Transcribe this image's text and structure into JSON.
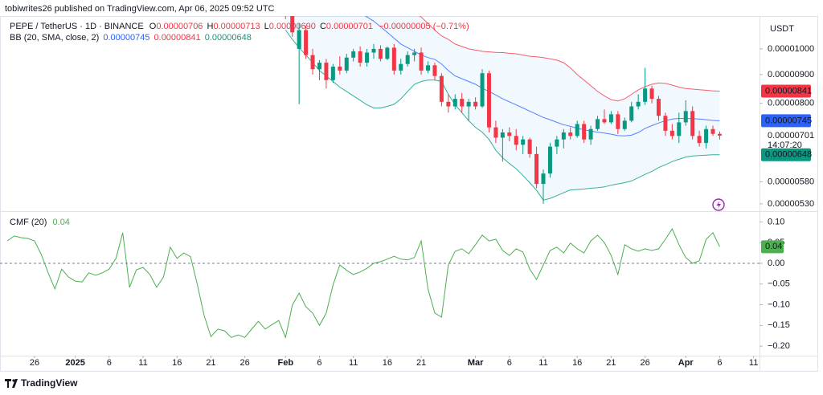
{
  "header": {
    "publisher": "tobiwrites26 published on TradingView.com, Apr 06, 2025 09:52 UTC",
    "currency": "USDT",
    "brand": "TradingView"
  },
  "chart_data": [
    {
      "type": "candlestick",
      "symbol": "PEPE / TetherUS · 1D · BINANCE",
      "ohlc_letters": [
        "O",
        "H",
        "L",
        "C"
      ],
      "ohlc_labels": [
        "0.00000706",
        "0.00000713",
        "0.00000690",
        "0.00000701"
      ],
      "change": "−0.00000005 (−0.71%)",
      "last_label": "0.00000701",
      "countdown": "14:07:20",
      "up_color": "#089981",
      "down_color": "#f23645",
      "log_scale": true,
      "ylim": [
        5.16e-06,
        1.144e-05
      ],
      "yticks": [
        {
          "value": 1e-05,
          "label": "0.00001000"
        },
        {
          "value": 9e-06,
          "label": "0.00000900"
        },
        {
          "value": 8e-06,
          "label": "0.00000800"
        },
        {
          "value": 5.8e-06,
          "label": "0.00000580"
        },
        {
          "value": 5.3e-06,
          "label": "0.00000530"
        }
      ],
      "x": [
        "2025-02-01",
        "2025-02-02",
        "2025-02-03",
        "2025-02-04",
        "2025-02-05",
        "2025-02-06",
        "2025-02-07",
        "2025-02-08",
        "2025-02-09",
        "2025-02-10",
        "2025-02-11",
        "2025-02-12",
        "2025-02-13",
        "2025-02-14",
        "2025-02-15",
        "2025-02-16",
        "2025-02-17",
        "2025-02-18",
        "2025-02-19",
        "2025-02-20",
        "2025-02-21",
        "2025-02-22",
        "2025-02-23",
        "2025-02-24",
        "2025-02-25",
        "2025-02-26",
        "2025-02-27",
        "2025-02-28",
        "2025-03-01",
        "2025-03-02",
        "2025-03-03",
        "2025-03-04",
        "2025-03-05",
        "2025-03-06",
        "2025-03-07",
        "2025-03-08",
        "2025-03-09",
        "2025-03-10",
        "2025-03-11",
        "2025-03-12",
        "2025-03-13",
        "2025-03-14",
        "2025-03-15",
        "2025-03-16",
        "2025-03-17",
        "2025-03-18",
        "2025-03-19",
        "2025-03-20",
        "2025-03-21",
        "2025-03-22",
        "2025-03-23",
        "2025-03-24",
        "2025-03-25",
        "2025-03-26",
        "2025-03-27",
        "2025-03-28",
        "2025-03-29",
        "2025-03-30",
        "2025-03-31",
        "2025-04-01",
        "2025-04-02",
        "2025-04-03",
        "2025-04-04",
        "2025-04-05",
        "2025-04-06"
      ],
      "open": [
        1.19e-05,
        1.15e-05,
        1e-05,
        1.08e-05,
        9.75e-06,
        9.2e-06,
        9.45e-06,
        8.8e-06,
        9.3e-06,
        9.15e-06,
        9.65e-06,
        9.9e-06,
        9.45e-06,
        9.85e-06,
        1e-05,
        9.6e-06,
        1.005e-05,
        9.15e-06,
        9.4e-06,
        9.75e-06,
        9.85e-06,
        9.15e-06,
        9.35e-06,
        8.95e-06,
        8.05e-06,
        7.9e-06,
        8.15e-06,
        7.9e-06,
        8.05e-06,
        7.9e-06,
        9.05e-06,
        7.25e-06,
        6.95e-06,
        7.1e-06,
        7e-06,
        6.75e-06,
        6.9e-06,
        6.5e-06,
        5.75e-06,
        6e-06,
        6.7e-06,
        6.9e-06,
        7.1e-06,
        7e-06,
        7.35e-06,
        6.9e-06,
        7.2e-06,
        7.5e-06,
        7.4e-06,
        7.65e-06,
        7.2e-06,
        7.45e-06,
        7.9e-06,
        8.05e-06,
        8.5e-06,
        8.15e-06,
        7.6e-06,
        7.15e-06,
        7e-06,
        7.4e-06,
        7.75e-06,
        7e-06,
        6.8e-06,
        7.2e-06,
        7.06e-06
      ],
      "high": [
        1.23e-05,
        1.17e-05,
        1.11e-05,
        1.1e-05,
        1e-05,
        9.55e-06,
        9.6e-06,
        9.4e-06,
        9.7e-06,
        9.8e-06,
        1e-05,
        1.01e-05,
        1e-05,
        1.02e-05,
        1.015e-05,
        1.01e-05,
        1.02e-05,
        9.6e-06,
        9.9e-06,
        1e-05,
        1.005e-05,
        9.5e-06,
        9.45e-06,
        9.05e-06,
        8.3e-06,
        8.3e-06,
        8.35e-06,
        8.15e-06,
        8.2e-06,
        9.2e-06,
        9.15e-06,
        7.45e-06,
        7.2e-06,
        7.25e-06,
        7.2e-06,
        7e-06,
        6.95e-06,
        6.7e-06,
        6.1e-06,
        6.8e-06,
        7e-06,
        7.2e-06,
        7.25e-06,
        7.45e-06,
        7.45e-06,
        7.3e-06,
        7.6e-06,
        7.8e-06,
        7.75e-06,
        7.75e-06,
        7.55e-06,
        8.05e-06,
        8.3e-06,
        9.25e-06,
        8.6e-06,
        8.25e-06,
        7.7e-06,
        7.35e-06,
        7.7e-06,
        8.1e-06,
        7.9e-06,
        7.15e-06,
        7.3e-06,
        7.3e-06,
        7.13e-06
      ],
      "low": [
        1.13e-05,
        1.05e-05,
        7.97e-06,
        9.6e-06,
        9e-06,
        8.8e-06,
        8.5e-06,
        8.7e-06,
        9e-06,
        9.05e-06,
        9.5e-06,
        9.3e-06,
        9.3e-06,
        9.6e-06,
        9.5e-06,
        9.55e-06,
        9e-06,
        9e-06,
        9.3e-06,
        9.5e-06,
        9e-06,
        9.05e-06,
        8.8e-06,
        7.9e-06,
        7.7e-06,
        7.8e-06,
        7.7e-06,
        7.45e-06,
        7.8e-06,
        7.85e-06,
        7.1e-06,
        6.8e-06,
        6.3e-06,
        6.85e-06,
        6.6e-06,
        6.5e-06,
        6.4e-06,
        5.65e-06,
        5.3e-06,
        5.9e-06,
        6.5e-06,
        6.65e-06,
        6.9e-06,
        6.95e-06,
        6.8e-06,
        6.75e-06,
        7.15e-06,
        7.35e-06,
        7.35e-06,
        7.05e-06,
        7.15e-06,
        7.4e-06,
        7.8e-06,
        7.95e-06,
        8e-06,
        7.45e-06,
        7e-06,
        6.9e-06,
        6.8e-06,
        7.3e-06,
        6.9e-06,
        6.7e-06,
        6.65e-06,
        7e-06,
        6.9e-06
      ],
      "close": [
        1.15e-05,
        1.07e-05,
        1.08e-05,
        9.75e-06,
        9.2e-06,
        9.45e-06,
        8.8e-06,
        9.3e-06,
        9.15e-06,
        9.65e-06,
        9.9e-06,
        9.45e-06,
        9.85e-06,
        1e-05,
        9.6e-06,
        1.005e-05,
        9.15e-06,
        9.4e-06,
        9.75e-06,
        9.85e-06,
        9.15e-06,
        9.35e-06,
        8.95e-06,
        8.05e-06,
        7.9e-06,
        8.15e-06,
        7.9e-06,
        8.05e-06,
        7.9e-06,
        9.05e-06,
        7.25e-06,
        6.95e-06,
        7.1e-06,
        7e-06,
        6.75e-06,
        6.9e-06,
        6.5e-06,
        5.75e-06,
        6e-06,
        6.7e-06,
        6.9e-06,
        7.1e-06,
        7e-06,
        7.35e-06,
        6.9e-06,
        7.2e-06,
        7.5e-06,
        7.4e-06,
        7.65e-06,
        7.2e-06,
        7.45e-06,
        7.9e-06,
        8.05e-06,
        8.5e-06,
        8.15e-06,
        7.6e-06,
        7.15e-06,
        7e-06,
        7.4e-06,
        7.75e-06,
        7e-06,
        6.8e-06,
        7.2e-06,
        7.06e-06,
        7.01e-06
      ],
      "overlay": {
        "name": "BB (20, SMA, close, 2)",
        "fill": "#2196f3",
        "series": [
          {
            "color": "#2962ff",
            "value_label": "0.00000745",
            "values": [
              1.33e-05,
              1.32e-05,
              1.305e-05,
              1.29e-05,
              1.28e-05,
              1.265e-05,
              1.25e-05,
              1.235e-05,
              1.22e-05,
              1.2e-05,
              1.18e-05,
              1.16e-05,
              1.14e-05,
              1.12e-05,
              1.095e-05,
              1.07e-05,
              1.045e-05,
              1.02e-05,
              1.005e-05,
              9.9e-06,
              9.75e-06,
              9.65e-06,
              9.58e-06,
              9.4e-06,
              9.15e-06,
              8.95e-06,
              8.85e-06,
              8.75e-06,
              8.65e-06,
              8.51e-06,
              8.4e-06,
              8.28e-06,
              8.15e-06,
              8.05e-06,
              7.95e-06,
              7.85e-06,
              7.75e-06,
              7.65e-06,
              7.55e-06,
              7.48e-06,
              7.4e-06,
              7.33e-06,
              7.28e-06,
              7.22e-06,
              7.18e-06,
              7.14e-06,
              7.11e-06,
              7.08e-06,
              7.05e-06,
              7.01e-06,
              7e-06,
              7.02e-06,
              7.1e-06,
              7.22e-06,
              7.3e-06,
              7.38e-06,
              7.45e-06,
              7.5e-06,
              7.52e-06,
              7.52e-06,
              7.51e-06,
              7.5e-06,
              7.48e-06,
              7.46e-06,
              7.45e-06
            ]
          },
          {
            "color": "#f23645",
            "value_label": "0.00000841",
            "values": [
              1.42e-05,
              1.41e-05,
              1.4e-05,
              1.39e-05,
              1.38e-05,
              1.37e-05,
              1.35e-05,
              1.33e-05,
              1.31e-05,
              1.3e-05,
              1.29e-05,
              1.28e-05,
              1.27e-05,
              1.26e-05,
              1.25e-05,
              1.24e-05,
              1.23e-05,
              1.215e-05,
              1.19e-05,
              1.16e-05,
              1.14e-05,
              1.11e-05,
              1.08e-05,
              1.055e-05,
              1.04e-05,
              1.02e-05,
              1.01e-05,
              1e-05,
              9.95e-06,
              9.9e-06,
              9.88e-06,
              9.86e-06,
              9.85e-06,
              9.82e-06,
              9.8e-06,
              9.75e-06,
              9.7e-06,
              9.68e-06,
              9.65e-06,
              9.6e-06,
              9.55e-06,
              9.45e-06,
              9.25e-06,
              9e-06,
              8.8e-06,
              8.6e-06,
              8.4e-06,
              8.25e-06,
              8.12e-06,
              8.08e-06,
              8.15e-06,
              8.3e-06,
              8.45e-06,
              8.57e-06,
              8.65e-06,
              8.7e-06,
              8.68e-06,
              8.62e-06,
              8.55e-06,
              8.5e-06,
              8.48e-06,
              8.46e-06,
              8.44e-06,
              8.42e-06,
              8.41e-06
            ]
          },
          {
            "color": "#089981",
            "value_label": "0.00000648",
            "values": [
              1.08e-05,
              1.04e-05,
              1.005e-05,
              9.75e-06,
              9.45e-06,
              9.15e-06,
              8.95e-06,
              8.75e-06,
              8.55e-06,
              8.4e-06,
              8.25e-06,
              8.1e-06,
              7.95e-06,
              7.85e-06,
              7.85e-06,
              7.9e-06,
              7.97e-06,
              8.15e-06,
              8.4e-06,
              8.65e-06,
              8.75e-06,
              8.8e-06,
              8.8e-06,
              8.75e-06,
              8.3e-06,
              7.95e-06,
              7.7e-06,
              7.45e-06,
              7.25e-06,
              7.11e-06,
              6.9e-06,
              6.6e-06,
              6.4e-06,
              6.25e-06,
              6.12e-06,
              5.95e-06,
              5.78e-06,
              5.6e-06,
              5.38e-06,
              5.42e-06,
              5.48e-06,
              5.55e-06,
              5.61e-06,
              5.62e-06,
              5.63e-06,
              5.65e-06,
              5.66e-06,
              5.68e-06,
              5.72e-06,
              5.75e-06,
              5.78e-06,
              5.82e-06,
              5.9e-06,
              5.98e-06,
              6.05e-06,
              6.15e-06,
              6.22e-06,
              6.3e-06,
              6.36e-06,
              6.42e-06,
              6.45e-06,
              6.46e-06,
              6.47e-06,
              6.48e-06,
              6.48e-06
            ]
          }
        ]
      }
    },
    {
      "type": "line",
      "title": "CMF (20)",
      "value_label": "0.04",
      "color": "#4caf50",
      "zero_line": true,
      "ylim": [
        -0.223,
        0.124
      ],
      "yticks": [
        {
          "value": 0.1,
          "label": "0.10"
        },
        {
          "value": 0.05,
          "label": "0.05"
        },
        {
          "value": 0,
          "label": "0.00"
        },
        {
          "value": -0.05,
          "label": "−0.05"
        },
        {
          "value": -0.1,
          "label": "−0.10"
        },
        {
          "value": -0.15,
          "label": "−0.15"
        },
        {
          "value": -0.2,
          "label": "−0.20"
        }
      ],
      "xticks": [
        {
          "value": "2024-12-26",
          "label": "26"
        },
        {
          "value": "2025-01-01",
          "label": "2025"
        },
        {
          "value": "2025-01-06",
          "label": "6"
        },
        {
          "value": "2025-01-11",
          "label": "11"
        },
        {
          "value": "2025-01-16",
          "label": "16"
        },
        {
          "value": "2025-01-21",
          "label": "21"
        },
        {
          "value": "2025-01-26",
          "label": "26"
        },
        {
          "value": "2025-02-01",
          "label": "Feb"
        },
        {
          "value": "2025-02-06",
          "label": "6"
        },
        {
          "value": "2025-02-11",
          "label": "11"
        },
        {
          "value": "2025-02-16",
          "label": "16"
        },
        {
          "value": "2025-02-21",
          "label": "21"
        },
        {
          "value": "2025-03-01",
          "label": "Mar"
        },
        {
          "value": "2025-03-06",
          "label": "6"
        },
        {
          "value": "2025-03-11",
          "label": "11"
        },
        {
          "value": "2025-03-16",
          "label": "16"
        },
        {
          "value": "2025-03-21",
          "label": "21"
        },
        {
          "value": "2025-03-26",
          "label": "26"
        },
        {
          "value": "2025-04-01",
          "label": "Apr"
        },
        {
          "value": "2025-04-06",
          "label": "6"
        },
        {
          "value": "2025-04-11",
          "label": "11"
        }
      ],
      "x": [
        "2024-12-22",
        "2024-12-23",
        "2024-12-24",
        "2024-12-25",
        "2024-12-26",
        "2024-12-27",
        "2024-12-28",
        "2024-12-29",
        "2024-12-30",
        "2024-12-31",
        "2025-01-01",
        "2025-01-02",
        "2025-01-03",
        "2025-01-04",
        "2025-01-05",
        "2025-01-06",
        "2025-01-07",
        "2025-01-08",
        "2025-01-09",
        "2025-01-10",
        "2025-01-11",
        "2025-01-12",
        "2025-01-13",
        "2025-01-14",
        "2025-01-15",
        "2025-01-16",
        "2025-01-17",
        "2025-01-18",
        "2025-01-19",
        "2025-01-20",
        "2025-01-21",
        "2025-01-22",
        "2025-01-23",
        "2025-01-24",
        "2025-01-25",
        "2025-01-26",
        "2025-01-27",
        "2025-01-28",
        "2025-01-29",
        "2025-01-30",
        "2025-01-31",
        "2025-02-01",
        "2025-02-02",
        "2025-02-03",
        "2025-02-04",
        "2025-02-05",
        "2025-02-06",
        "2025-02-07",
        "2025-02-08",
        "2025-02-09",
        "2025-02-10",
        "2025-02-11",
        "2025-02-12",
        "2025-02-13",
        "2025-02-14",
        "2025-02-15",
        "2025-02-16",
        "2025-02-17",
        "2025-02-18",
        "2025-02-19",
        "2025-02-20",
        "2025-02-21",
        "2025-02-22",
        "2025-02-23",
        "2025-02-24",
        "2025-02-25",
        "2025-02-26",
        "2025-02-27",
        "2025-02-28",
        "2025-03-01",
        "2025-03-02",
        "2025-03-03",
        "2025-03-04",
        "2025-03-05",
        "2025-03-06",
        "2025-03-07",
        "2025-03-08",
        "2025-03-09",
        "2025-03-10",
        "2025-03-11",
        "2025-03-12",
        "2025-03-13",
        "2025-03-14",
        "2025-03-15",
        "2025-03-16",
        "2025-03-17",
        "2025-03-18",
        "2025-03-19",
        "2025-03-20",
        "2025-03-21",
        "2025-03-22",
        "2025-03-23",
        "2025-03-24",
        "2025-03-25",
        "2025-03-26",
        "2025-03-27",
        "2025-03-28",
        "2025-03-29",
        "2025-03-30",
        "2025-03-31",
        "2025-04-01",
        "2025-04-02",
        "2025-04-03",
        "2025-04-04",
        "2025-04-05",
        "2025-04-06"
      ],
      "values": [
        0.054,
        0.066,
        0.062,
        0.06,
        0.054,
        0.021,
        -0.023,
        -0.062,
        -0.014,
        -0.033,
        -0.043,
        -0.045,
        -0.023,
        -0.029,
        -0.023,
        -0.014,
        0.012,
        0.074,
        -0.058,
        -0.016,
        -0.01,
        -0.027,
        -0.058,
        -0.033,
        0.039,
        0.012,
        0.025,
        0.016,
        -0.052,
        -0.126,
        -0.177,
        -0.159,
        -0.163,
        -0.179,
        -0.173,
        -0.179,
        -0.159,
        -0.14,
        -0.159,
        -0.148,
        -0.138,
        -0.179,
        -0.101,
        -0.072,
        -0.105,
        -0.12,
        -0.15,
        -0.12,
        -0.052,
        -0.004,
        -0.017,
        -0.027,
        -0.021,
        -0.012,
        0.0,
        0.004,
        0.01,
        0.017,
        0.01,
        0.008,
        0.014,
        0.054,
        -0.062,
        -0.12,
        -0.13,
        -0.004,
        0.029,
        0.035,
        0.023,
        0.045,
        0.068,
        0.054,
        0.058,
        0.031,
        0.019,
        0.035,
        0.027,
        -0.014,
        -0.039,
        -0.004,
        0.031,
        0.039,
        0.025,
        0.049,
        0.035,
        0.025,
        0.054,
        0.068,
        0.05,
        0.019,
        -0.027,
        0.045,
        0.035,
        0.029,
        0.035,
        0.031,
        0.035,
        0.058,
        0.083,
        0.045,
        0.014,
        0.0,
        0.006,
        0.058,
        0.074,
        0.04
      ]
    }
  ]
}
